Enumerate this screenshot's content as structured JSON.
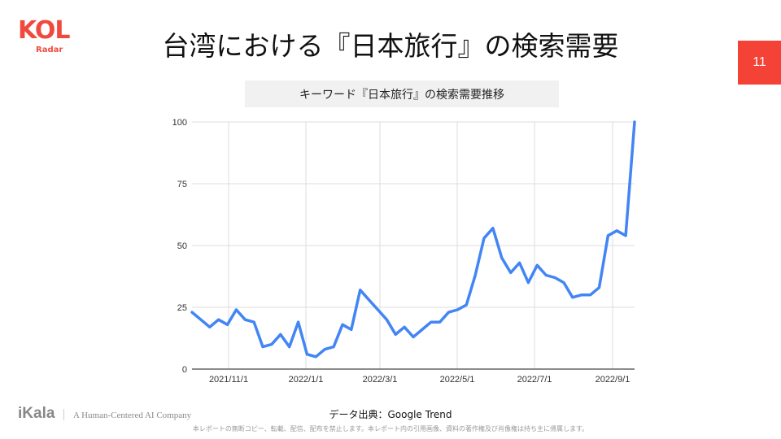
{
  "logo": {
    "brand": "KOL",
    "sub": "Radar"
  },
  "slide": {
    "title": "台湾における『日本旅行』の検索需要",
    "page_number": "11",
    "accent_color": "#f44336"
  },
  "chart_title": "キーワード『日本旅行』の検索需要推移",
  "source": "データ出典：Google Trend",
  "footer": {
    "company": "iKala",
    "tagline": "A Human-Centered AI Company",
    "copyright": "本レポートの無断コピー、転載、配信、配布を禁止します。本レポート内の引用画像、資料の著作権及び肖像権は持ち主に帰属します。"
  },
  "chart_data": {
    "type": "line",
    "title": "キーワード『日本旅行』の検索需要推移",
    "xlabel": "",
    "ylabel": "",
    "ylim": [
      0,
      100
    ],
    "yticks": [
      0,
      25,
      50,
      75,
      100
    ],
    "xtick_labels": [
      "2021/11/1",
      "2022/1/1",
      "2022/3/1",
      "2022/5/1",
      "2022/7/1",
      "2022/9/1"
    ],
    "grid": true,
    "legend": "none",
    "line_color": "#4285f4",
    "series": [
      {
        "name": "日本旅行",
        "values": [
          23,
          20,
          17,
          20,
          18,
          24,
          20,
          19,
          9,
          10,
          14,
          9,
          19,
          6,
          5,
          8,
          9,
          18,
          16,
          32,
          28,
          24,
          20,
          14,
          17,
          13,
          16,
          19,
          19,
          23,
          24,
          26,
          38,
          53,
          57,
          45,
          39,
          43,
          35,
          42,
          38,
          37,
          35,
          29,
          30,
          30,
          33,
          54,
          56,
          54,
          100
        ]
      }
    ]
  }
}
